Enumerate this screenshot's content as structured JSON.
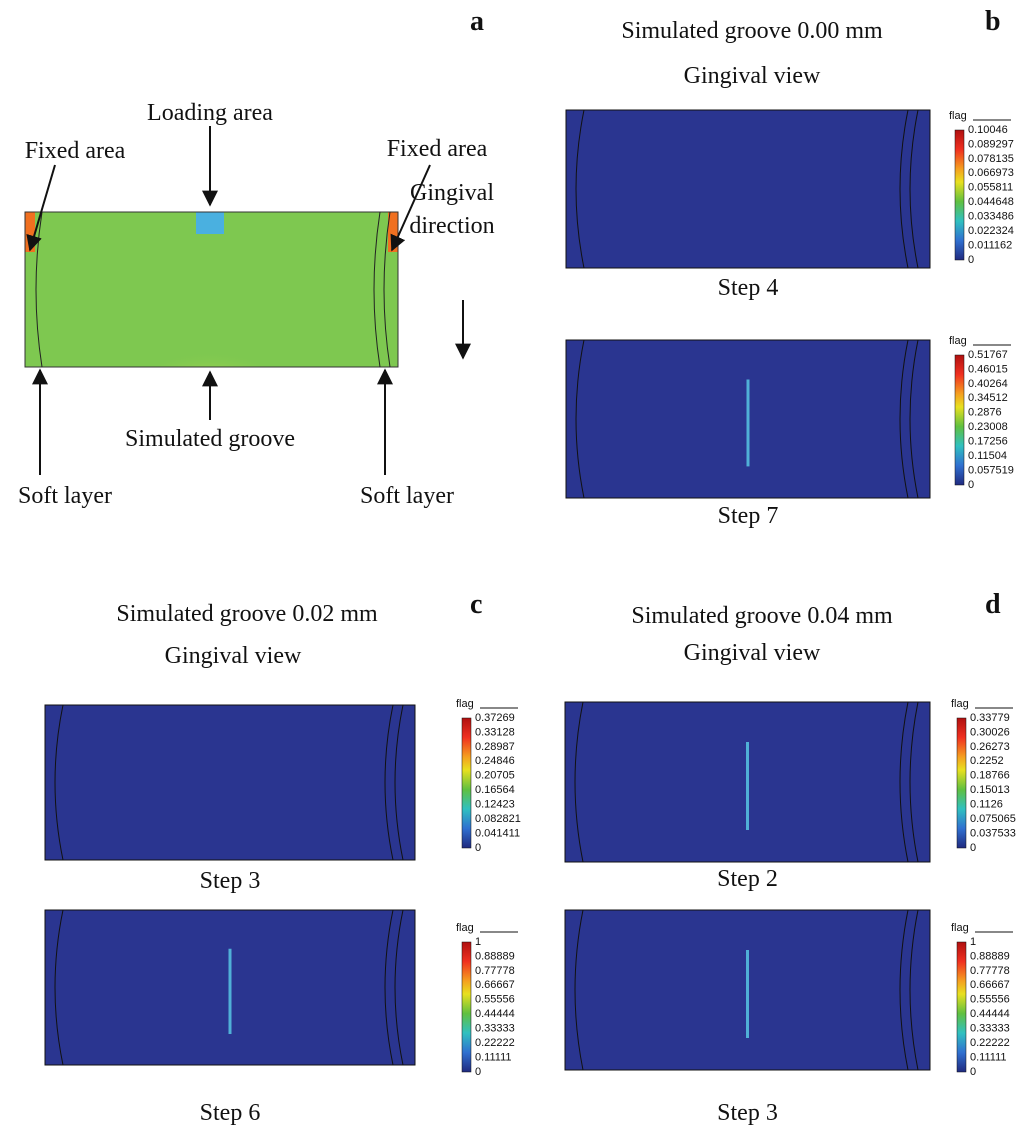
{
  "panel_a": {
    "label": "a",
    "annotations": [
      "Loading area",
      "Fixed area",
      "Fixed area",
      "Gingival",
      "direction",
      "Simulated groove",
      "Soft layer",
      "Soft layer"
    ]
  },
  "panels": [
    {
      "label": "b",
      "title": "Simulated groove 0.00 mm",
      "subtitle": "Gingival view",
      "views": [
        {
          "step": "Step 4",
          "legend_title": "flag",
          "scale": [
            "0.10046",
            "0.089297",
            "0.078135",
            "0.066973",
            "0.055811",
            "0.044648",
            "0.033486",
            "0.022324",
            "0.011162",
            "0"
          ]
        },
        {
          "step": "Step 7",
          "legend_title": "flag",
          "scale": [
            "0.51767",
            "0.46015",
            "0.40264",
            "0.34512",
            "0.2876",
            "0.23008",
            "0.17256",
            "0.11504",
            "0.057519",
            "0"
          ]
        }
      ]
    },
    {
      "label": "c",
      "title": "Simulated groove 0.02 mm",
      "subtitle": "Gingival view",
      "views": [
        {
          "step": "Step 3",
          "legend_title": "flag",
          "scale": [
            "0.37269",
            "0.33128",
            "0.28987",
            "0.24846",
            "0.20705",
            "0.16564",
            "0.12423",
            "0.082821",
            "0.041411",
            "0"
          ]
        },
        {
          "step": "Step 6",
          "legend_title": "flag",
          "scale": [
            "1",
            "0.88889",
            "0.77778",
            "0.66667",
            "0.55556",
            "0.44444",
            "0.33333",
            "0.22222",
            "0.11111",
            "0"
          ]
        }
      ]
    },
    {
      "label": "d",
      "title": "Simulated groove 0.04 mm",
      "subtitle": "Gingival view",
      "views": [
        {
          "step": "Step 2",
          "legend_title": "flag",
          "scale": [
            "0.33779",
            "0.30026",
            "0.26273",
            "0.2252",
            "0.18766",
            "0.15013",
            "0.1126",
            "0.075065",
            "0.037533",
            "0"
          ]
        },
        {
          "step": "Step 3",
          "legend_title": "flag",
          "scale": [
            "1",
            "0.88889",
            "0.77778",
            "0.66667",
            "0.55556",
            "0.44444",
            "0.33333",
            "0.22222",
            "0.11111",
            "0"
          ]
        }
      ]
    }
  ]
}
